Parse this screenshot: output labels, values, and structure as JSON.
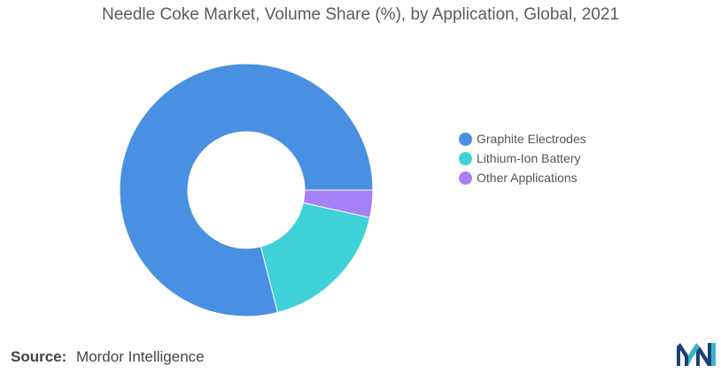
{
  "chart_data": {
    "type": "pie",
    "donut": true,
    "title": "Needle Coke Market, Volume Share (%), by Application, Global, 2021",
    "categories": [
      "Graphite Electrodes",
      "Lithium-Ion Battery",
      "Other Applications"
    ],
    "values": [
      79,
      17.5,
      3.5
    ],
    "colors": [
      "#4a90e2",
      "#3ed1d8",
      "#a780f5"
    ],
    "start_angle_deg": 0,
    "direction": "counterclockwise",
    "legend_position": "right"
  },
  "source": {
    "label": "Source:",
    "text": "Mordor Intelligence"
  },
  "logo": {
    "icon": "mordor-intelligence-logo",
    "colors": [
      "#1d3f73",
      "#35b6c7"
    ]
  }
}
